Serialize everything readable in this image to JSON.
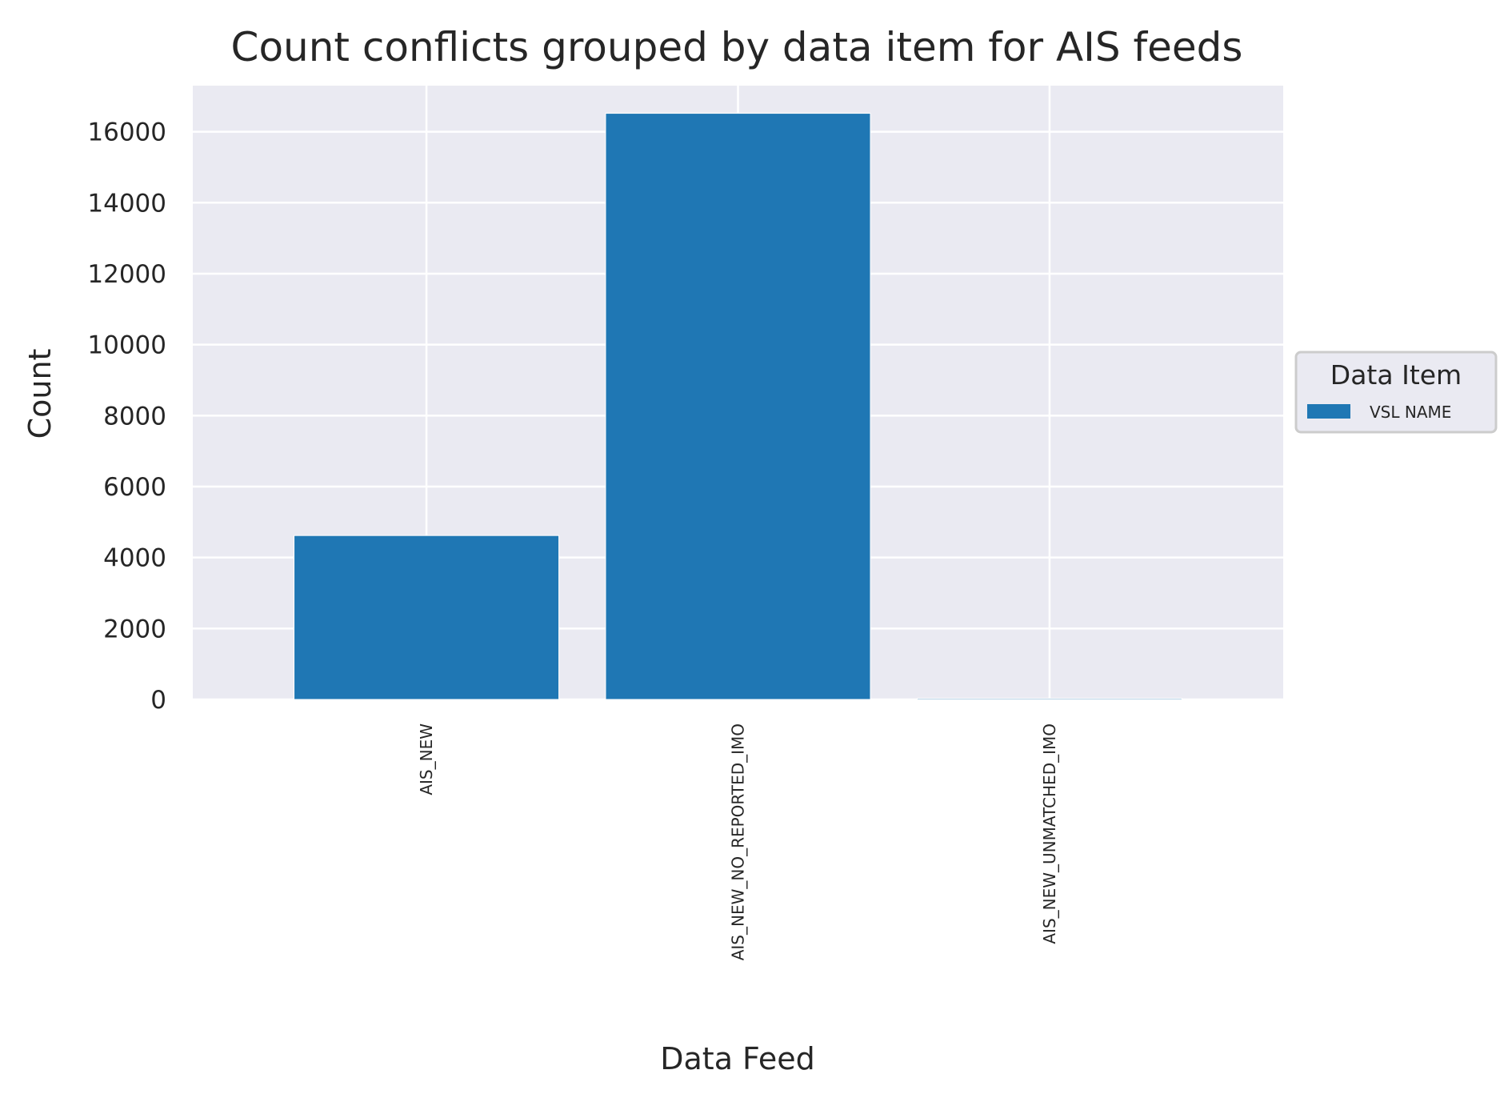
{
  "chart_data": {
    "type": "bar",
    "title": "Count conflicts grouped by data item for AIS feeds",
    "xlabel": "Data Feed",
    "ylabel": "Count",
    "categories": [
      "AIS_NEW",
      "AIS_NEW_NO_REPORTED_IMO",
      "AIS_NEW_UNMATCHED_IMO"
    ],
    "series": [
      {
        "name": "VSL NAME",
        "color": "#1f77b4",
        "values": [
          4620,
          16520,
          30
        ]
      }
    ],
    "ylim": [
      0,
      17300
    ],
    "yticks": [
      0,
      2000,
      4000,
      6000,
      8000,
      10000,
      12000,
      14000,
      16000
    ],
    "grid": true,
    "legend": {
      "title": "Data Item",
      "placement": "center-right outside"
    },
    "colors": {
      "plot_background": "#eaeaf2",
      "grid": "#ffffff",
      "text": "#262626"
    }
  }
}
